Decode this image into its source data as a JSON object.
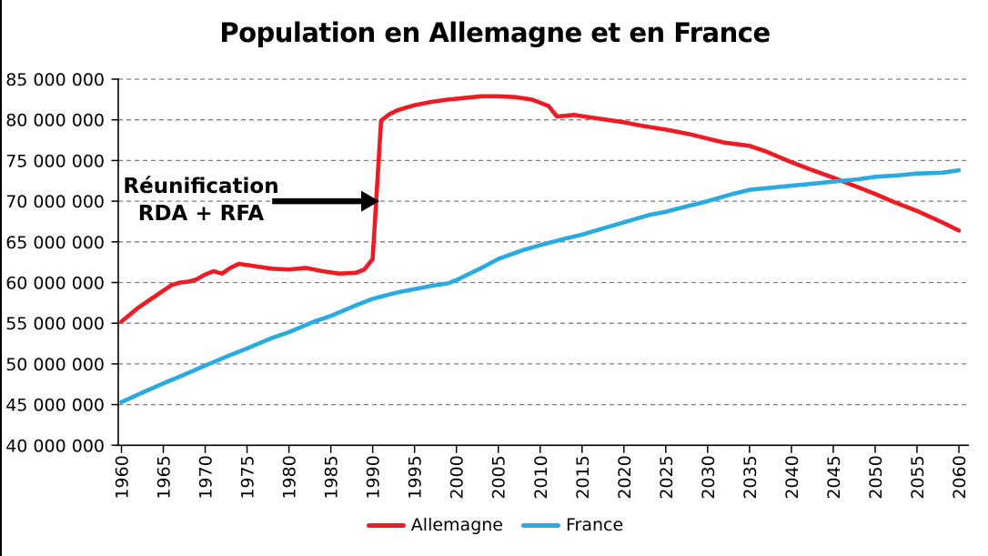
{
  "page": {
    "background_color": "#FFFFFF",
    "left_edge_border_color": "#000000"
  },
  "chart_data": {
    "type": "line",
    "title": "Population en Allemagne et en France",
    "grid": {
      "horizontal_dashed": true,
      "color": "#7F7F7F"
    },
    "axis_color": "#000000",
    "legend_position": "bottom",
    "x_axis": {
      "range": [
        1960,
        2060
      ],
      "tick_step_years": 5,
      "tick_rotation_deg": -90,
      "ticks": [
        1960,
        1965,
        1970,
        1975,
        1980,
        1985,
        1990,
        1995,
        2000,
        2005,
        2010,
        2015,
        2020,
        2025,
        2030,
        2035,
        2040,
        2045,
        2050,
        2055,
        2060
      ]
    },
    "y_axis": {
      "range": [
        40000000,
        85000000
      ],
      "tick_step": 5000000,
      "tick_labels": [
        "40 000 000",
        "45 000 000",
        "50 000 000",
        "55 000 000",
        "60 000 000",
        "65 000 000",
        "70 000 000",
        "75 000 000",
        "80 000 000",
        "85 000 000"
      ]
    },
    "series": [
      {
        "name": "Allemagne",
        "color": "#ED1C24",
        "points": [
          [
            1960,
            55200000
          ],
          [
            1962,
            56900000
          ],
          [
            1964,
            58300000
          ],
          [
            1966,
            59700000
          ],
          [
            1967,
            60000000
          ],
          [
            1968,
            60100000
          ],
          [
            1969,
            60400000
          ],
          [
            1970,
            61000000
          ],
          [
            1971,
            61400000
          ],
          [
            1972,
            61100000
          ],
          [
            1973,
            61800000
          ],
          [
            1974,
            62300000
          ],
          [
            1976,
            62000000
          ],
          [
            1978,
            61700000
          ],
          [
            1980,
            61600000
          ],
          [
            1982,
            61800000
          ],
          [
            1984,
            61400000
          ],
          [
            1986,
            61100000
          ],
          [
            1988,
            61200000
          ],
          [
            1989,
            61600000
          ],
          [
            1990,
            62900000
          ],
          [
            1991,
            79900000
          ],
          [
            1992,
            80700000
          ],
          [
            1993,
            81200000
          ],
          [
            1995,
            81800000
          ],
          [
            1997,
            82200000
          ],
          [
            1999,
            82500000
          ],
          [
            2001,
            82700000
          ],
          [
            2003,
            82900000
          ],
          [
            2005,
            82900000
          ],
          [
            2007,
            82800000
          ],
          [
            2009,
            82500000
          ],
          [
            2010,
            82100000
          ],
          [
            2011,
            81700000
          ],
          [
            2012,
            80400000
          ],
          [
            2013,
            80500000
          ],
          [
            2014,
            80600000
          ],
          [
            2016,
            80300000
          ],
          [
            2018,
            80000000
          ],
          [
            2020,
            79700000
          ],
          [
            2022,
            79300000
          ],
          [
            2025,
            78800000
          ],
          [
            2028,
            78200000
          ],
          [
            2030,
            77700000
          ],
          [
            2032,
            77200000
          ],
          [
            2035,
            76800000
          ],
          [
            2037,
            76100000
          ],
          [
            2040,
            74800000
          ],
          [
            2042,
            74000000
          ],
          [
            2045,
            72900000
          ],
          [
            2048,
            71700000
          ],
          [
            2050,
            70900000
          ],
          [
            2052,
            70000000
          ],
          [
            2055,
            68800000
          ],
          [
            2058,
            67400000
          ],
          [
            2060,
            66400000
          ]
        ]
      },
      {
        "name": "France",
        "color": "#29ABE2",
        "points": [
          [
            1960,
            45300000
          ],
          [
            1963,
            46700000
          ],
          [
            1965,
            47600000
          ],
          [
            1968,
            48900000
          ],
          [
            1970,
            49800000
          ],
          [
            1973,
            51100000
          ],
          [
            1975,
            51900000
          ],
          [
            1978,
            53200000
          ],
          [
            1980,
            53900000
          ],
          [
            1983,
            55200000
          ],
          [
            1985,
            55900000
          ],
          [
            1988,
            57200000
          ],
          [
            1990,
            58000000
          ],
          [
            1993,
            58800000
          ],
          [
            1995,
            59200000
          ],
          [
            1997,
            59600000
          ],
          [
            1999,
            59900000
          ],
          [
            2000,
            60300000
          ],
          [
            2003,
            61800000
          ],
          [
            2005,
            62900000
          ],
          [
            2008,
            64000000
          ],
          [
            2010,
            64600000
          ],
          [
            2013,
            65400000
          ],
          [
            2015,
            65900000
          ],
          [
            2018,
            66800000
          ],
          [
            2020,
            67400000
          ],
          [
            2023,
            68300000
          ],
          [
            2025,
            68700000
          ],
          [
            2028,
            69500000
          ],
          [
            2030,
            70000000
          ],
          [
            2033,
            70900000
          ],
          [
            2035,
            71400000
          ],
          [
            2038,
            71700000
          ],
          [
            2040,
            71900000
          ],
          [
            2043,
            72200000
          ],
          [
            2045,
            72400000
          ],
          [
            2048,
            72700000
          ],
          [
            2050,
            73000000
          ],
          [
            2053,
            73200000
          ],
          [
            2055,
            73400000
          ],
          [
            2058,
            73500000
          ],
          [
            2060,
            73800000
          ]
        ]
      }
    ],
    "annotation": {
      "line1": "Réunification",
      "line2": "RDA + RFA",
      "arrow_color": "#000000",
      "arrow": {
        "from_year": 1978,
        "to_year": 1990.8,
        "at_value": 70000000
      }
    }
  }
}
